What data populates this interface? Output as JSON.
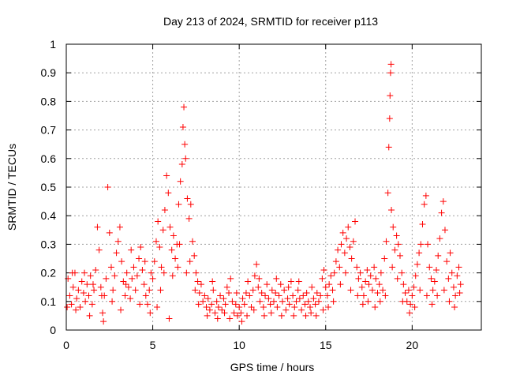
{
  "chart_data": {
    "type": "scatter",
    "title": "Day 213 of 2024, SRMTID for receiver p113",
    "xlabel": "GPS time / hours",
    "ylabel": "SRMTID / TECUs",
    "xlim": [
      0,
      24
    ],
    "ylim": [
      0,
      1
    ],
    "xticks": [
      0,
      5,
      10,
      15,
      20
    ],
    "xtick_labels": [
      "0",
      "5",
      "10",
      "15",
      "20"
    ],
    "yticks": [
      0,
      0.1,
      0.2,
      0.3,
      0.4,
      0.5,
      0.6,
      0.7,
      0.8,
      0.9,
      1
    ],
    "ytick_labels": [
      "0",
      "0.1",
      "0.2",
      "0.3",
      "0.4",
      "0.5",
      "0.6",
      "0.7",
      "0.8",
      "0.9",
      "1"
    ],
    "grid": true,
    "marker": "+",
    "color": "#ff0000",
    "series": [
      {
        "name": "SRMTID",
        "points": [
          [
            0.1,
            0.18
          ],
          [
            0.2,
            0.12
          ],
          [
            0.3,
            0.09
          ],
          [
            0.4,
            0.15
          ],
          [
            0.5,
            0.2
          ],
          [
            0.6,
            0.11
          ],
          [
            0.7,
            0.14
          ],
          [
            0.8,
            0.08
          ],
          [
            0.9,
            0.17
          ],
          [
            1.0,
            0.13
          ],
          [
            1.1,
            0.1
          ],
          [
            1.2,
            0.16
          ],
          [
            1.3,
            0.12
          ],
          [
            1.4,
            0.19
          ],
          [
            1.5,
            0.09
          ],
          [
            1.6,
            0.14
          ],
          [
            1.7,
            0.21
          ],
          [
            1.8,
            0.36
          ],
          [
            1.9,
            0.28
          ],
          [
            2.0,
            0.15
          ],
          [
            2.1,
            0.06
          ],
          [
            2.2,
            0.12
          ],
          [
            2.3,
            0.18
          ],
          [
            2.4,
            0.5
          ],
          [
            2.5,
            0.34
          ],
          [
            2.6,
            0.22
          ],
          [
            2.7,
            0.14
          ],
          [
            2.8,
            0.19
          ],
          [
            2.9,
            0.27
          ],
          [
            3.0,
            0.31
          ],
          [
            3.1,
            0.36
          ],
          [
            3.2,
            0.24
          ],
          [
            3.3,
            0.17
          ],
          [
            3.4,
            0.12
          ],
          [
            3.5,
            0.2
          ],
          [
            3.6,
            0.15
          ],
          [
            3.7,
            0.11
          ],
          [
            3.8,
            0.18
          ],
          [
            3.9,
            0.22
          ],
          [
            4.0,
            0.14
          ],
          [
            4.1,
            0.19
          ],
          [
            4.2,
            0.25
          ],
          [
            4.3,
            0.29
          ],
          [
            4.4,
            0.21
          ],
          [
            4.5,
            0.16
          ],
          [
            4.6,
            0.12
          ],
          [
            4.7,
            0.09
          ],
          [
            4.8,
            0.14
          ],
          [
            4.9,
            0.2
          ],
          [
            5.0,
            0.18
          ],
          [
            5.1,
            0.24
          ],
          [
            5.2,
            0.31
          ],
          [
            5.3,
            0.38
          ],
          [
            5.4,
            0.29
          ],
          [
            5.5,
            0.22
          ],
          [
            5.6,
            0.35
          ],
          [
            5.7,
            0.42
          ],
          [
            5.8,
            0.54
          ],
          [
            5.9,
            0.48
          ],
          [
            6.0,
            0.36
          ],
          [
            5.95,
            0.04
          ],
          [
            6.1,
            0.28
          ],
          [
            6.2,
            0.33
          ],
          [
            6.3,
            0.25
          ],
          [
            6.4,
            0.3
          ],
          [
            6.5,
            0.44
          ],
          [
            6.6,
            0.52
          ],
          [
            6.7,
            0.58
          ],
          [
            6.75,
            0.71
          ],
          [
            6.8,
            0.78
          ],
          [
            6.85,
            0.65
          ],
          [
            6.9,
            0.6
          ],
          [
            7.0,
            0.46
          ],
          [
            7.1,
            0.39
          ],
          [
            7.2,
            0.44
          ],
          [
            7.3,
            0.31
          ],
          [
            7.4,
            0.26
          ],
          [
            7.5,
            0.2
          ],
          [
            7.6,
            0.17
          ],
          [
            7.7,
            0.13
          ],
          [
            7.8,
            0.16
          ],
          [
            7.9,
            0.1
          ],
          [
            8.0,
            0.12
          ],
          [
            8.1,
            0.08
          ],
          [
            8.2,
            0.11
          ],
          [
            8.3,
            0.07
          ],
          [
            8.4,
            0.09
          ],
          [
            8.5,
            0.14
          ],
          [
            8.6,
            0.06
          ],
          [
            8.7,
            0.1
          ],
          [
            8.8,
            0.08
          ],
          [
            8.9,
            0.12
          ],
          [
            9.0,
            0.07
          ],
          [
            9.1,
            0.11
          ],
          [
            9.2,
            0.09
          ],
          [
            9.3,
            0.15
          ],
          [
            9.4,
            0.13
          ],
          [
            9.5,
            0.18
          ],
          [
            9.6,
            0.1
          ],
          [
            9.7,
            0.06
          ],
          [
            9.8,
            0.09
          ],
          [
            9.9,
            0.05
          ],
          [
            10.0,
            0.08
          ],
          [
            10.1,
            0.06
          ],
          [
            10.2,
            0.11
          ],
          [
            10.3,
            0.09
          ],
          [
            10.4,
            0.13
          ],
          [
            10.5,
            0.17
          ],
          [
            10.6,
            0.12
          ],
          [
            10.7,
            0.08
          ],
          [
            10.8,
            0.14
          ],
          [
            10.9,
            0.19
          ],
          [
            11.0,
            0.23
          ],
          [
            11.1,
            0.15
          ],
          [
            11.2,
            0.1
          ],
          [
            11.3,
            0.13
          ],
          [
            11.4,
            0.08
          ],
          [
            11.5,
            0.12
          ],
          [
            11.6,
            0.16
          ],
          [
            11.7,
            0.11
          ],
          [
            11.8,
            0.09
          ],
          [
            11.9,
            0.14
          ],
          [
            12.0,
            0.1
          ],
          [
            12.1,
            0.13
          ],
          [
            12.2,
            0.08
          ],
          [
            12.3,
            0.12
          ],
          [
            12.4,
            0.16
          ],
          [
            12.5,
            0.1
          ],
          [
            12.6,
            0.14
          ],
          [
            12.7,
            0.07
          ],
          [
            12.8,
            0.11
          ],
          [
            12.9,
            0.09
          ],
          [
            13.0,
            0.17
          ],
          [
            13.1,
            0.12
          ],
          [
            13.2,
            0.08
          ],
          [
            13.3,
            0.1
          ],
          [
            13.4,
            0.14
          ],
          [
            13.5,
            0.11
          ],
          [
            13.6,
            0.07
          ],
          [
            13.7,
            0.12
          ],
          [
            13.8,
            0.09
          ],
          [
            13.9,
            0.13
          ],
          [
            14.0,
            0.1
          ],
          [
            14.1,
            0.08
          ],
          [
            14.2,
            0.15
          ],
          [
            14.3,
            0.11
          ],
          [
            14.4,
            0.09
          ],
          [
            14.5,
            0.13
          ],
          [
            14.6,
            0.1
          ],
          [
            14.7,
            0.12
          ],
          [
            14.8,
            0.18
          ],
          [
            14.9,
            0.21
          ],
          [
            15.0,
            0.15
          ],
          [
            15.1,
            0.12
          ],
          [
            15.2,
            0.16
          ],
          [
            15.3,
            0.19
          ],
          [
            15.4,
            0.14
          ],
          [
            15.5,
            0.2
          ],
          [
            15.6,
            0.24
          ],
          [
            15.7,
            0.28
          ],
          [
            15.8,
            0.22
          ],
          [
            15.9,
            0.3
          ],
          [
            16.0,
            0.34
          ],
          [
            16.1,
            0.27
          ],
          [
            16.2,
            0.32
          ],
          [
            16.3,
            0.36
          ],
          [
            16.4,
            0.29
          ],
          [
            16.5,
            0.25
          ],
          [
            16.6,
            0.31
          ],
          [
            16.7,
            0.38
          ],
          [
            16.8,
            0.22
          ],
          [
            16.9,
            0.18
          ],
          [
            17.0,
            0.2
          ],
          [
            17.1,
            0.15
          ],
          [
            17.2,
            0.12
          ],
          [
            17.3,
            0.17
          ],
          [
            17.4,
            0.21
          ],
          [
            17.5,
            0.16
          ],
          [
            17.6,
            0.19
          ],
          [
            17.7,
            0.14
          ],
          [
            17.8,
            0.22
          ],
          [
            17.9,
            0.18
          ],
          [
            18.0,
            0.13
          ],
          [
            18.1,
            0.16
          ],
          [
            18.2,
            0.2
          ],
          [
            18.3,
            0.14
          ],
          [
            18.4,
            0.25
          ],
          [
            18.5,
            0.31
          ],
          [
            18.6,
            0.48
          ],
          [
            18.65,
            0.64
          ],
          [
            18.7,
            0.74
          ],
          [
            18.72,
            0.82
          ],
          [
            18.75,
            0.9
          ],
          [
            18.78,
            0.93
          ],
          [
            18.8,
            0.42
          ],
          [
            18.9,
            0.36
          ],
          [
            19.0,
            0.28
          ],
          [
            19.1,
            0.33
          ],
          [
            19.2,
            0.3
          ],
          [
            19.3,
            0.26
          ],
          [
            19.4,
            0.2
          ],
          [
            19.5,
            0.16
          ],
          [
            19.6,
            0.13
          ],
          [
            19.7,
            0.1
          ],
          [
            19.8,
            0.14
          ],
          [
            19.9,
            0.09
          ],
          [
            20.0,
            0.12
          ],
          [
            20.1,
            0.15
          ],
          [
            20.2,
            0.19
          ],
          [
            20.3,
            0.23
          ],
          [
            20.4,
            0.27
          ],
          [
            20.5,
            0.3
          ],
          [
            20.6,
            0.37
          ],
          [
            20.7,
            0.44
          ],
          [
            20.8,
            0.47
          ],
          [
            20.9,
            0.3
          ],
          [
            21.0,
            0.22
          ],
          [
            21.1,
            0.18
          ],
          [
            21.2,
            0.14
          ],
          [
            21.3,
            0.17
          ],
          [
            21.4,
            0.21
          ],
          [
            21.5,
            0.26
          ],
          [
            21.6,
            0.32
          ],
          [
            21.7,
            0.41
          ],
          [
            21.8,
            0.45
          ],
          [
            21.9,
            0.35
          ],
          [
            22.0,
            0.24
          ],
          [
            22.1,
            0.18
          ],
          [
            22.2,
            0.27
          ],
          [
            22.3,
            0.2
          ],
          [
            22.4,
            0.15
          ],
          [
            22.5,
            0.12
          ],
          [
            22.6,
            0.19
          ],
          [
            22.7,
            0.22
          ],
          [
            22.8,
            0.16
          ],
          [
            0.05,
            0.08
          ],
          [
            0.35,
            0.2
          ],
          [
            0.55,
            0.07
          ],
          [
            1.05,
            0.2
          ],
          [
            1.35,
            0.05
          ],
          [
            1.55,
            0.16
          ],
          [
            2.05,
            0.12
          ],
          [
            2.15,
            0.03
          ],
          [
            2.65,
            0.1
          ],
          [
            3.15,
            0.07
          ],
          [
            3.45,
            0.16
          ],
          [
            3.75,
            0.28
          ],
          [
            4.25,
            0.09
          ],
          [
            4.55,
            0.24
          ],
          [
            4.85,
            0.06
          ],
          [
            5.25,
            0.08
          ],
          [
            5.45,
            0.14
          ],
          [
            5.65,
            0.2
          ],
          [
            6.15,
            0.19
          ],
          [
            6.45,
            0.22
          ],
          [
            6.55,
            0.3
          ],
          [
            6.95,
            0.2
          ],
          [
            7.15,
            0.24
          ],
          [
            7.45,
            0.14
          ],
          [
            7.65,
            0.09
          ],
          [
            8.15,
            0.05
          ],
          [
            8.45,
            0.17
          ],
          [
            8.75,
            0.04
          ],
          [
            9.15,
            0.06
          ],
          [
            9.45,
            0.04
          ],
          [
            9.85,
            0.13
          ],
          [
            10.15,
            0.03
          ],
          [
            10.45,
            0.05
          ],
          [
            10.85,
            0.07
          ],
          [
            11.15,
            0.18
          ],
          [
            11.45,
            0.05
          ],
          [
            11.85,
            0.06
          ],
          [
            12.15,
            0.18
          ],
          [
            12.45,
            0.05
          ],
          [
            12.85,
            0.15
          ],
          [
            13.15,
            0.05
          ],
          [
            13.45,
            0.17
          ],
          [
            13.85,
            0.05
          ],
          [
            14.15,
            0.06
          ],
          [
            14.45,
            0.05
          ],
          [
            14.85,
            0.07
          ],
          [
            15.15,
            0.08
          ],
          [
            15.45,
            0.1
          ],
          [
            15.85,
            0.16
          ],
          [
            16.15,
            0.2
          ],
          [
            16.45,
            0.14
          ],
          [
            16.85,
            0.12
          ],
          [
            17.15,
            0.09
          ],
          [
            17.45,
            0.1
          ],
          [
            17.85,
            0.08
          ],
          [
            18.15,
            0.1
          ],
          [
            18.45,
            0.12
          ],
          [
            18.85,
            0.22
          ],
          [
            19.15,
            0.18
          ],
          [
            19.45,
            0.1
          ],
          [
            19.85,
            0.06
          ],
          [
            20.15,
            0.08
          ],
          [
            20.45,
            0.14
          ],
          [
            20.85,
            0.12
          ],
          [
            21.15,
            0.09
          ],
          [
            21.45,
            0.12
          ],
          [
            21.85,
            0.14
          ],
          [
            22.15,
            0.1
          ],
          [
            22.45,
            0.08
          ],
          [
            22.75,
            0.13
          ]
        ]
      }
    ]
  }
}
